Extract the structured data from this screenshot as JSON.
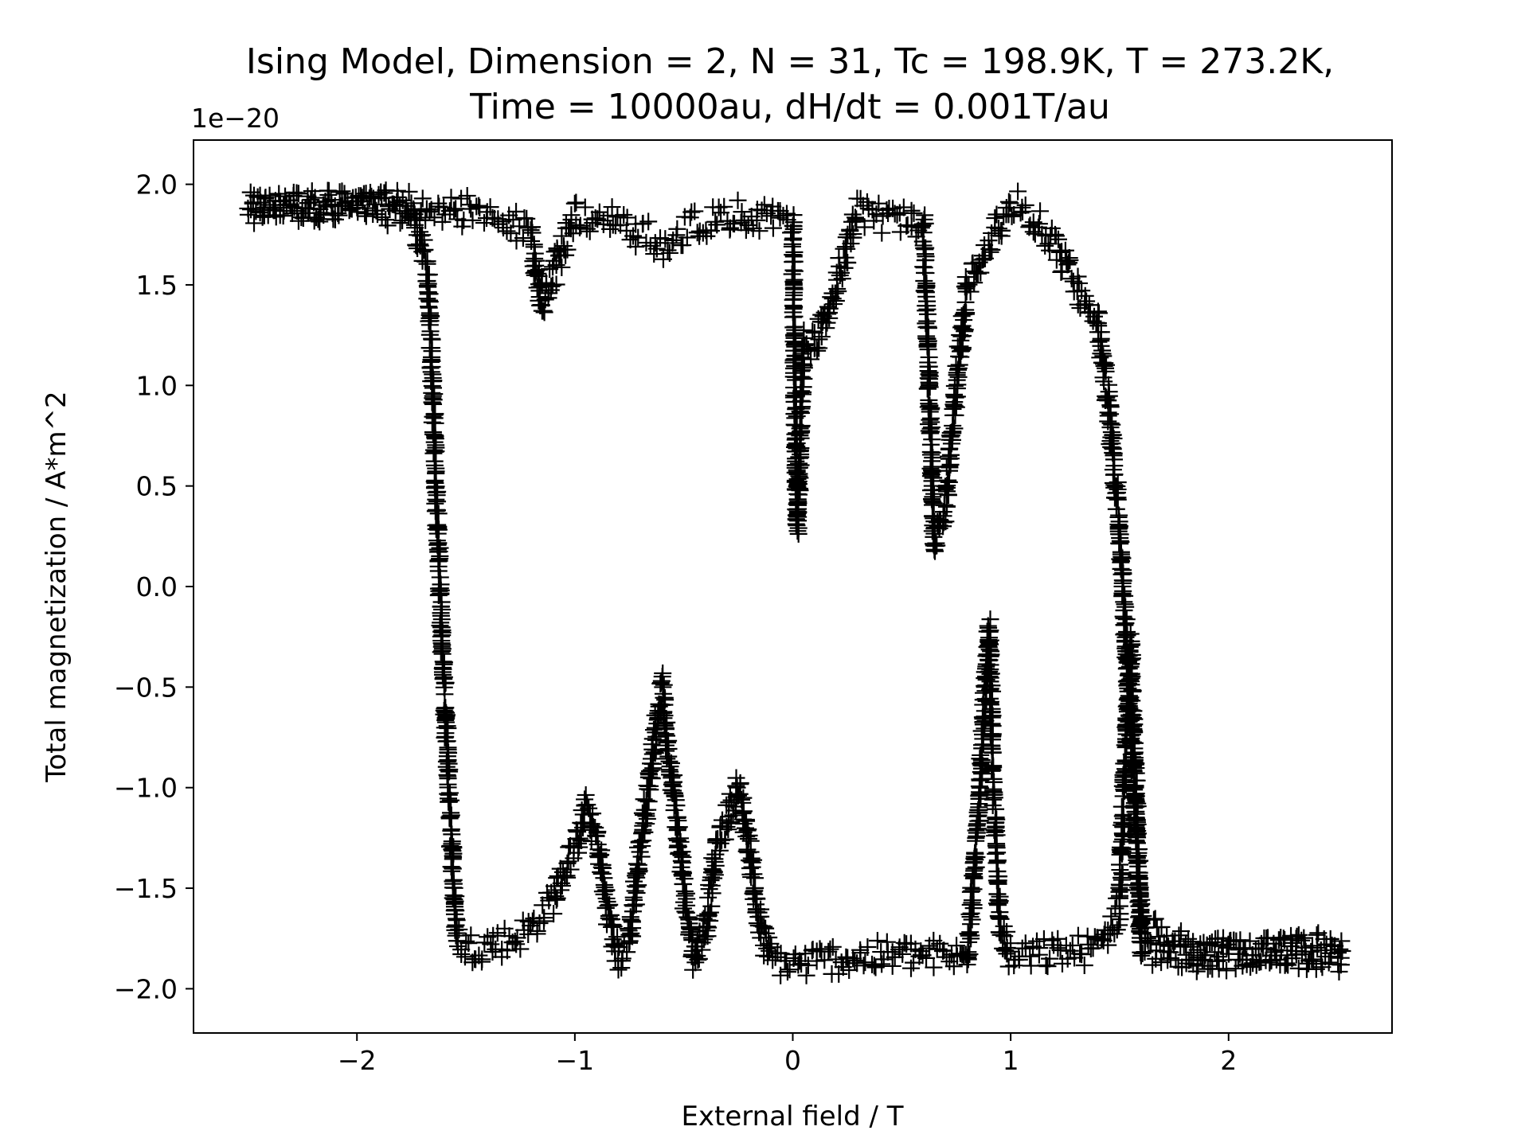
{
  "chart_data": {
    "type": "scatter",
    "title": [
      "Ising Model, Dimension = 2, N = 31, Tc = 198.9K, T = 273.2K,",
      "Time = 10000au, dH/dt = 0.001T/au"
    ],
    "xlabel": "External field / T",
    "ylabel": "Total magnetization / A*m^2",
    "y_offset_label": "1e−20",
    "xlim": [
      -2.75,
      2.75
    ],
    "ylim": [
      -2.22,
      2.22
    ],
    "xticks": [
      -2,
      -1,
      0,
      1,
      2
    ],
    "xtick_labels": [
      "−2",
      "−1",
      "0",
      "1",
      "2"
    ],
    "yticks": [
      2.0,
      1.5,
      1.0,
      0.5,
      0.0,
      -0.5,
      -1.0,
      -1.5,
      -2.0
    ],
    "ytick_labels": [
      "2.0",
      "1.5",
      "1.0",
      "0.5",
      "0.0",
      "−0.5",
      "−1.0",
      "−1.5",
      "−2.0"
    ],
    "grid": false,
    "legend": "none",
    "marker": "+",
    "marker_color": "#000000",
    "series": [
      {
        "description_points": "sampled magnetization trace (x in T, y in 1e-20 A*m^2)",
        "x": [
          -2.5,
          -2.3,
          -2.1,
          -1.9,
          -1.75,
          -1.68,
          -1.66,
          -1.64,
          -1.62,
          -1.6,
          -1.58,
          -1.56,
          -1.54,
          -1.5,
          -1.4,
          -1.3,
          -1.2,
          -1.1,
          -1.0,
          -0.95,
          -0.9,
          -0.85,
          -0.8,
          -0.75,
          -0.7,
          -0.65,
          -0.6,
          -0.58,
          -0.55,
          -0.5,
          -0.45,
          -0.4,
          -0.35,
          -0.3,
          -0.25,
          -0.2,
          -0.15,
          -0.1,
          0.0,
          0.2,
          0.4,
          0.6,
          0.8,
          0.85,
          0.88,
          0.9,
          0.92,
          0.95,
          1.0,
          1.2,
          1.4,
          1.5,
          1.52,
          1.55,
          1.6,
          1.8,
          2.0,
          2.2,
          2.4,
          2.52,
          2.52,
          2.4,
          2.2,
          2.0,
          1.8,
          1.6,
          1.5,
          1.45,
          1.4,
          1.3,
          1.2,
          1.1,
          1.0,
          0.9,
          0.8,
          0.75,
          0.7,
          0.65,
          0.6,
          0.5,
          0.3,
          0.2,
          0.1,
          0.05,
          0.02,
          0.0,
          -0.2,
          -0.4,
          -0.6,
          -0.8,
          -1.0,
          -1.15,
          -1.2,
          -1.4,
          -1.6,
          -1.8,
          -2.0,
          -2.2,
          -2.4,
          -2.5
        ],
        "y": [
          1.88,
          1.9,
          1.89,
          1.88,
          1.86,
          1.6,
          1.2,
          0.6,
          0.0,
          -0.5,
          -1.0,
          -1.4,
          -1.75,
          -1.8,
          -1.78,
          -1.76,
          -1.7,
          -1.55,
          -1.3,
          -1.1,
          -1.25,
          -1.6,
          -1.85,
          -1.75,
          -1.3,
          -0.9,
          -0.5,
          -0.75,
          -1.0,
          -1.5,
          -1.85,
          -1.7,
          -1.3,
          -1.15,
          -1.0,
          -1.3,
          -1.7,
          -1.85,
          -1.88,
          -1.85,
          -1.84,
          -1.83,
          -1.85,
          -1.2,
          -0.6,
          -0.2,
          -1.0,
          -1.7,
          -1.85,
          -1.82,
          -1.8,
          -1.6,
          -1.0,
          -0.3,
          -1.82,
          -1.84,
          -1.82,
          -1.81,
          -1.8,
          -1.82,
          -1.85,
          -1.83,
          -1.82,
          -1.84,
          -1.8,
          -1.7,
          0.3,
          0.9,
          1.3,
          1.5,
          1.7,
          1.85,
          1.9,
          1.7,
          1.5,
          1.0,
          0.4,
          0.2,
          1.8,
          1.82,
          1.85,
          1.5,
          1.2,
          1.2,
          0.3,
          1.8,
          1.85,
          1.82,
          1.7,
          1.82,
          1.84,
          1.4,
          1.75,
          1.85,
          1.88,
          1.9,
          1.88,
          1.9,
          1.89,
          1.88
        ]
      }
    ]
  }
}
